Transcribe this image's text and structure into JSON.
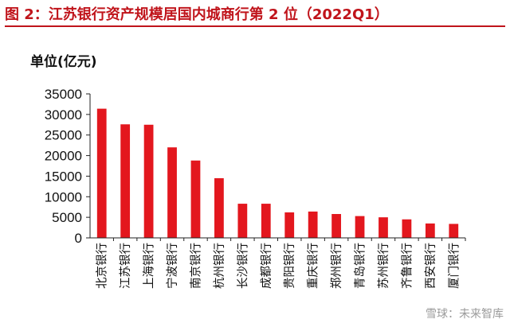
{
  "title": "图 2：江苏银行资产规模居国内城商行第 2 位（2022Q1）",
  "watermark": "雪球：未来智库",
  "colors": {
    "bar": "#e3171e",
    "title": "#c0141b",
    "axis": "#222222"
  },
  "chart_data": {
    "type": "bar",
    "title": "",
    "ylabel": "单位(亿元)",
    "xlabel": "",
    "ylim": [
      0,
      35000
    ],
    "yticks": [
      0,
      5000,
      10000,
      15000,
      20000,
      25000,
      30000,
      35000
    ],
    "grid": false,
    "categories": [
      "北京银行",
      "江苏银行",
      "上海银行",
      "宁波银行",
      "南京银行",
      "杭州银行",
      "长沙银行",
      "成都银行",
      "贵阳银行",
      "重庆银行",
      "郑州银行",
      "青岛银行",
      "苏州银行",
      "齐鲁银行",
      "西安银行",
      "厦门银行"
    ],
    "values": [
      31400,
      27600,
      27500,
      22000,
      18800,
      14500,
      8300,
      8300,
      6200,
      6400,
      5800,
      5300,
      5000,
      4500,
      3500,
      3400
    ]
  }
}
